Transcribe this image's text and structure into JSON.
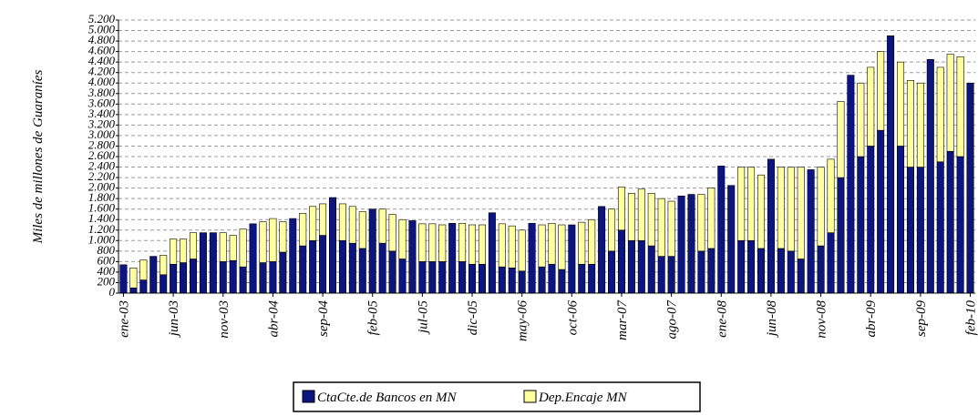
{
  "chart_data": {
    "type": "stacked_bar",
    "ylabel": "Miles de millones de Guaraníes",
    "categories": [
      "ene-03",
      null,
      null,
      null,
      null,
      "jun-03",
      null,
      null,
      null,
      null,
      "nov-03",
      null,
      null,
      null,
      null,
      "abr-04",
      null,
      null,
      null,
      null,
      "sep-04",
      null,
      null,
      null,
      null,
      "feb-05",
      null,
      null,
      null,
      null,
      "jul-05",
      null,
      null,
      null,
      null,
      "dic-05",
      null,
      null,
      null,
      null,
      "may-06",
      null,
      null,
      null,
      null,
      "oct-06",
      null,
      null,
      null,
      null,
      "mar-07",
      null,
      null,
      null,
      null,
      "ago-07",
      null,
      null,
      null,
      null,
      "ene-08",
      null,
      null,
      null,
      null,
      "jun-08",
      null,
      null,
      null,
      null,
      "nov-08",
      null,
      null,
      null,
      null,
      "abr-09",
      null,
      null,
      null,
      null,
      "sep-09",
      null,
      null,
      null,
      null,
      "feb-10"
    ],
    "series": [
      {
        "name": "CtaCte.de Bancos en MN",
        "color": "#0c1480",
        "values": [
          540,
          100,
          250,
          700,
          350,
          550,
          580,
          650,
          1150,
          1150,
          600,
          620,
          500,
          1320,
          580,
          600,
          780,
          1420,
          900,
          1000,
          1100,
          1820,
          1000,
          950,
          850,
          1600,
          950,
          800,
          650,
          1380,
          600,
          600,
          600,
          1330,
          600,
          550,
          550,
          1530,
          500,
          480,
          420,
          1330,
          500,
          550,
          450,
          1300,
          550,
          550,
          1650,
          800,
          1200,
          1000,
          1000,
          900,
          700,
          700,
          1850,
          1880,
          800,
          850,
          2420,
          2050,
          1000,
          1000,
          850,
          2550,
          850,
          800,
          650,
          2350,
          900,
          1150,
          2200,
          4150,
          2600,
          2800,
          3100,
          4900,
          2800,
          2400,
          2400,
          4450,
          2500,
          2700,
          2600,
          4000
        ]
      },
      {
        "name": "Dep.Encaje MN",
        "color": "#ffffa0",
        "values": [
          0,
          380,
          380,
          0,
          370,
          480,
          450,
          500,
          0,
          0,
          550,
          480,
          720,
          0,
          780,
          820,
          580,
          0,
          620,
          650,
          600,
          0,
          700,
          700,
          700,
          0,
          650,
          700,
          750,
          0,
          720,
          720,
          700,
          0,
          730,
          750,
          750,
          0,
          820,
          800,
          780,
          0,
          800,
          780,
          850,
          0,
          800,
          850,
          0,
          800,
          820,
          900,
          980,
          1000,
          1100,
          1050,
          0,
          0,
          1080,
          1150,
          0,
          0,
          1400,
          1400,
          1400,
          0,
          1550,
          1600,
          1750,
          0,
          1500,
          1400,
          1450,
          0,
          1400,
          1500,
          1500,
          0,
          1600,
          1650,
          1600,
          0,
          1800,
          1850,
          1900,
          0
        ]
      }
    ],
    "ylim": [
      0,
      5200
    ],
    "yticks": [
      0,
      200,
      400,
      600,
      800,
      {
        "value": 1000,
        "label": "1.000"
      },
      {
        "value": 1200,
        "label": "1.200"
      },
      {
        "value": 1400,
        "label": "1.400"
      },
      {
        "value": 1600,
        "label": "1.600"
      },
      {
        "value": 1800,
        "label": "1.800"
      },
      {
        "value": 2000,
        "label": "2.000"
      },
      {
        "value": 2200,
        "label": "2.200"
      },
      {
        "value": 2400,
        "label": "2.400"
      },
      {
        "value": 2600,
        "label": "2.600"
      },
      {
        "value": 2800,
        "label": "2.800"
      },
      {
        "value": 3000,
        "label": "3.000"
      },
      {
        "value": 3200,
        "label": "3.200"
      },
      {
        "value": 3400,
        "label": "3.400"
      },
      {
        "value": 3600,
        "label": "3.600"
      },
      {
        "value": 3800,
        "label": "3.800"
      },
      {
        "value": 4000,
        "label": "4.000"
      },
      {
        "value": 4200,
        "label": "4.200"
      },
      {
        "value": 4400,
        "label": "4.400"
      },
      {
        "value": 4600,
        "label": "4.600"
      },
      {
        "value": 4800,
        "label": "4.800"
      },
      {
        "value": 5000,
        "label": "5.000"
      },
      {
        "value": 5200,
        "label": "5.200"
      }
    ],
    "grid": true
  }
}
